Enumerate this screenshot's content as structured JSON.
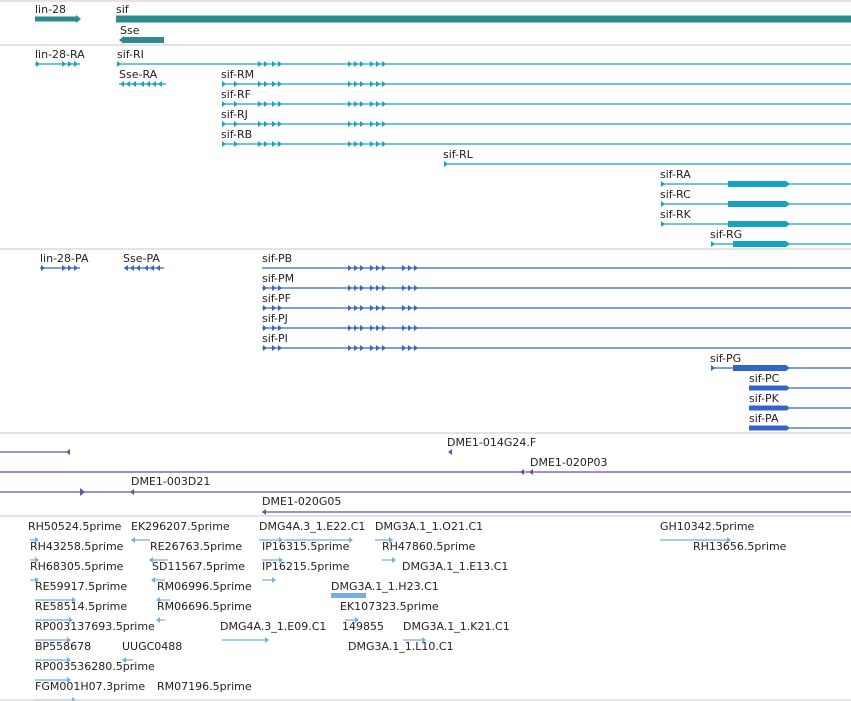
{
  "colors": {
    "gene": "#2e8b8b",
    "transcript": "#17a2c4",
    "protein": "#3565c9",
    "clone": "#6a4fa3",
    "est": "#77aee0",
    "separator": "#c8c8c8"
  },
  "tracks": {
    "genes": [
      {
        "label": "lin-28",
        "strand": "+"
      },
      {
        "label": "sif",
        "strand": "+"
      },
      {
        "label": "Sse",
        "strand": "-"
      }
    ],
    "transcripts": [
      {
        "label": "lin-28-RA"
      },
      {
        "label": "sif-RI"
      },
      {
        "label": "Sse-RA"
      },
      {
        "label": "sif-RM"
      },
      {
        "label": "sif-RF"
      },
      {
        "label": "sif-RJ"
      },
      {
        "label": "sif-RB"
      },
      {
        "label": "sif-RL"
      },
      {
        "label": "sif-RA"
      },
      {
        "label": "sif-RC"
      },
      {
        "label": "sif-RK"
      },
      {
        "label": "sif-RG"
      }
    ],
    "proteins": [
      {
        "label": "lin-28-PA"
      },
      {
        "label": "Sse-PA"
      },
      {
        "label": "sif-PB"
      },
      {
        "label": "sif-PM"
      },
      {
        "label": "sif-PF"
      },
      {
        "label": "sif-PJ"
      },
      {
        "label": "sif-PI"
      },
      {
        "label": "sif-PG"
      },
      {
        "label": "sif-PC"
      },
      {
        "label": "sif-PK"
      },
      {
        "label": "sif-PA"
      }
    ],
    "clones": [
      {
        "label": "DME1-014G24.F"
      },
      {
        "label": "DME1-020P03"
      },
      {
        "label": "DME1-003D21"
      },
      {
        "label": "DME1-020G05"
      }
    ],
    "ests": [
      {
        "label": "RH50524.5prime"
      },
      {
        "label": "EK296207.5prime"
      },
      {
        "label": "DMG4A.3_1.E22.C1"
      },
      {
        "label": "DMG3A.1_1.O21.C1"
      },
      {
        "label": "GH10342.5prime"
      },
      {
        "label": "RH43258.5prime"
      },
      {
        "label": "RE26763.5prime"
      },
      {
        "label": "IP16315.5prime"
      },
      {
        "label": "RH47860.5prime"
      },
      {
        "label": "RH13656.5prime"
      },
      {
        "label": "RH68305.5prime"
      },
      {
        "label": "SD11567.5prime"
      },
      {
        "label": "IP16215.5prime"
      },
      {
        "label": "DMG3A.1_1.E13.C1"
      },
      {
        "label": "RE59917.5prime"
      },
      {
        "label": "RM06996.5prime"
      },
      {
        "label": "DMG3A.1_1.H23.C1"
      },
      {
        "label": "RE58514.5prime"
      },
      {
        "label": "RM06696.5prime"
      },
      {
        "label": "EK107323.5prime"
      },
      {
        "label": "RP003137693.5prime"
      },
      {
        "label": "DMG4A.3_1.E09.C1"
      },
      {
        "label": "149855"
      },
      {
        "label": "DMG3A.1_1.K21.C1"
      },
      {
        "label": "BP558678"
      },
      {
        "label": "UUGC0488"
      },
      {
        "label": "DMG3A.1_1.L10.C1"
      },
      {
        "label": "RP003536280.5prime"
      },
      {
        "label": "FGM001H07.3prime"
      },
      {
        "label": "RM07196.5prime"
      }
    ]
  }
}
